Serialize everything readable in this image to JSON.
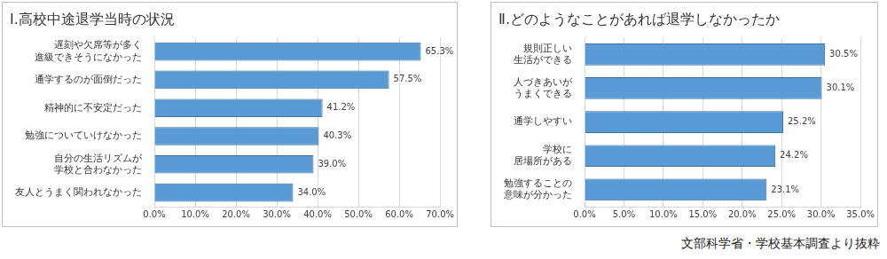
{
  "chart_data": [
    {
      "type": "bar",
      "orientation": "horizontal",
      "title": "Ⅰ.高校中途退学当時の状況",
      "categories": [
        "遅刻や欠席等が多く\n進級できそうになかった",
        "通学するのが面倒だった",
        "精神的に不安定だった",
        "勉強についていけなかった",
        "自分の生活リズムが\n学校と合わなかった",
        "友人とうまく関われなかった"
      ],
      "values": [
        65.3,
        57.5,
        41.2,
        40.3,
        39.0,
        34.0
      ],
      "value_labels": [
        "65.3%",
        "57.5%",
        "41.2%",
        "40.3%",
        "39.0%",
        "34.0%"
      ],
      "data_labels": true,
      "color": "#5b9bd5",
      "xlim": [
        0,
        70
      ],
      "xticks": [
        {
          "value": 0,
          "label": "0.0%"
        },
        {
          "value": 10,
          "label": "10.0%"
        },
        {
          "value": 20,
          "label": "20.0%"
        },
        {
          "value": 30,
          "label": "30.0%"
        },
        {
          "value": 40,
          "label": "40.0%"
        },
        {
          "value": 50,
          "label": "50.0%"
        },
        {
          "value": 60,
          "label": "60.0%"
        },
        {
          "value": 70,
          "label": "70.0%"
        }
      ],
      "grid": true
    },
    {
      "type": "bar",
      "orientation": "horizontal",
      "title": "Ⅱ.どのようなことがあれば退学しなかったか",
      "categories": [
        "規則正しい\n生活ができる",
        "人づきあいが\nうまくできる",
        "通学しやすい",
        "学校に\n居場所がある",
        "勉強することの\n意味が分かった"
      ],
      "values": [
        30.5,
        30.1,
        25.2,
        24.2,
        23.1
      ],
      "value_labels": [
        "30.5%",
        "30.1%",
        "25.2%",
        "24.2%",
        "23.1%"
      ],
      "data_labels": true,
      "color": "#5b9bd5",
      "xlim": [
        0,
        35
      ],
      "xticks": [
        {
          "value": 0,
          "label": "0.0%"
        },
        {
          "value": 5,
          "label": "5.0%"
        },
        {
          "value": 10,
          "label": "10.0%"
        },
        {
          "value": 15,
          "label": "15.0%"
        },
        {
          "value": 20,
          "label": "20.0%"
        },
        {
          "value": 25,
          "label": "25.0%"
        },
        {
          "value": 30,
          "label": "30.0%"
        },
        {
          "value": 35,
          "label": "35.0%"
        }
      ],
      "grid": true,
      "annotations": [
        "文部科学省・学校基本調査より抜粋"
      ]
    }
  ]
}
